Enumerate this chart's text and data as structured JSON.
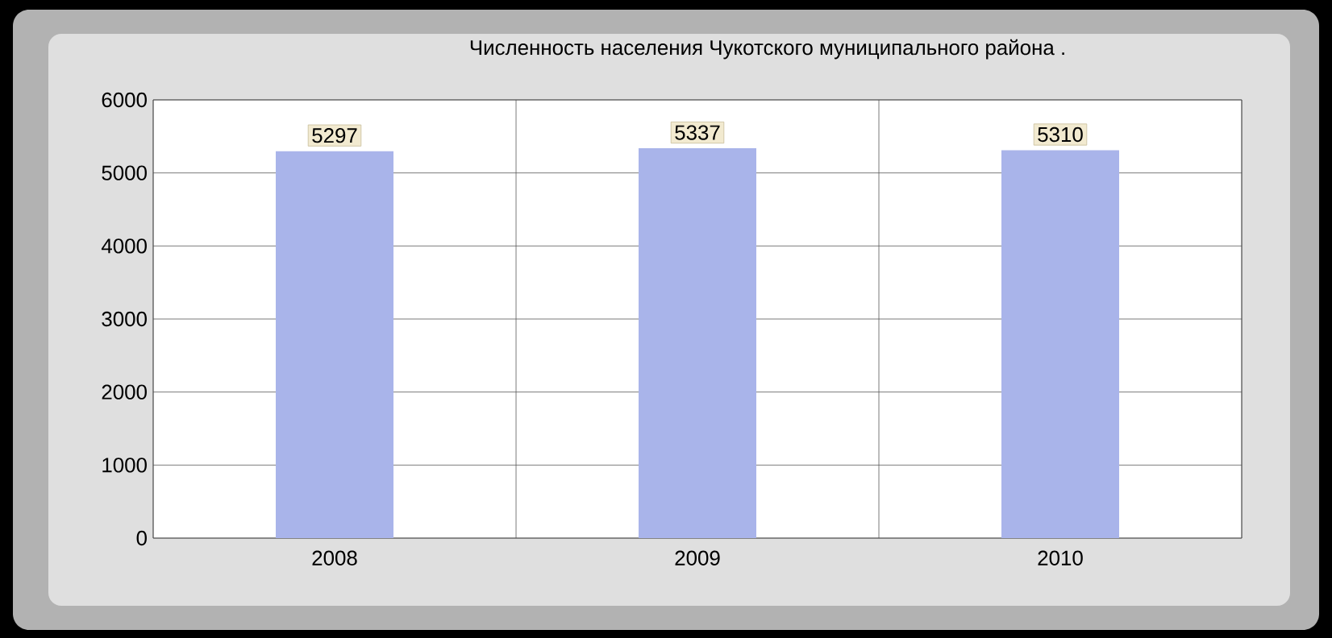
{
  "chart_data": {
    "type": "bar",
    "title": "Численность населения Чукотского муниципального района .",
    "categories": [
      "2008",
      "2009",
      "2010"
    ],
    "values": [
      5297,
      5337,
      5310
    ],
    "color": "#a9b4ea",
    "ylim": [
      0,
      6000
    ],
    "yticks": [
      0,
      1000,
      2000,
      3000,
      4000,
      5000,
      6000
    ],
    "grid": true,
    "data_labels": true
  }
}
